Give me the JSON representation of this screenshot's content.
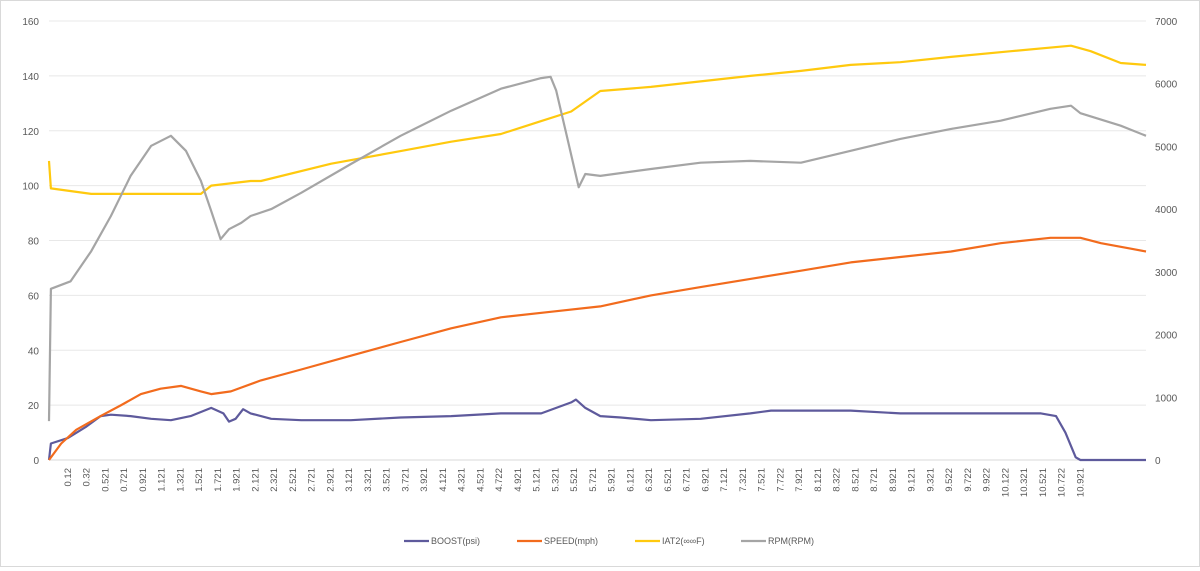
{
  "chart_data": {
    "type": "line",
    "title": "",
    "xlabel": "",
    "ylabel_left": "",
    "ylabel_right": "",
    "xlim": [
      0,
      11.7
    ],
    "ylim_left": [
      0,
      160
    ],
    "ylim_right": [
      0,
      7000
    ],
    "yticks_left": [
      "0",
      "20",
      "40",
      "60",
      "80",
      "100",
      "120",
      "140",
      "160"
    ],
    "yticks_right": [
      "0",
      "1000",
      "2000",
      "3000",
      "4000",
      "5000",
      "6000",
      "7000"
    ],
    "grid": true,
    "legend_position": "bottom",
    "xtick_labels": [
      "0.12",
      "0.32",
      "0.521",
      "0.721",
      "0.921",
      "1.121",
      "1.321",
      "1.521",
      "1.721",
      "1.921",
      "2.121",
      "2.321",
      "2.521",
      "2.721",
      "2.921",
      "3.121",
      "3.321",
      "3.521",
      "3.721",
      "3.921",
      "4.121",
      "4.321",
      "4.521",
      "4.722",
      "4.921",
      "5.121",
      "5.321",
      "5.521",
      "5.721",
      "5.921",
      "6.121",
      "6.321",
      "6.521",
      "6.721",
      "6.921",
      "7.121",
      "7.321",
      "7.521",
      "7.722",
      "7.921",
      "8.121",
      "8.322",
      "8.521",
      "8.721",
      "8.921",
      "9.121",
      "9.321",
      "9.522",
      "9.722",
      "9.922",
      "10.122",
      "10.321",
      "10.521",
      "10.722",
      "10.921"
    ],
    "series": [
      {
        "name": "BOOST(psi)",
        "axis": "left",
        "color": "#5e5a9c",
        "points": [
          [
            0,
            0
          ],
          [
            0.02,
            6
          ],
          [
            0.2,
            8
          ],
          [
            0.39,
            12
          ],
          [
            0.55,
            16
          ],
          [
            0.66,
            16.5
          ],
          [
            0.87,
            16
          ],
          [
            1.09,
            15
          ],
          [
            1.3,
            14.5
          ],
          [
            1.51,
            16
          ],
          [
            1.73,
            19
          ],
          [
            1.86,
            17
          ],
          [
            1.92,
            14
          ],
          [
            1.99,
            15
          ],
          [
            2.07,
            18.5
          ],
          [
            2.15,
            17
          ],
          [
            2.37,
            15
          ],
          [
            2.69,
            14.5
          ],
          [
            3.22,
            14.5
          ],
          [
            3.75,
            15.5
          ],
          [
            4.29,
            16
          ],
          [
            4.82,
            17
          ],
          [
            5.25,
            17
          ],
          [
            5.57,
            21
          ],
          [
            5.62,
            22
          ],
          [
            5.72,
            19
          ],
          [
            5.88,
            16
          ],
          [
            6.1,
            15.5
          ],
          [
            6.42,
            14.5
          ],
          [
            6.95,
            15
          ],
          [
            7.48,
            17
          ],
          [
            7.7,
            18
          ],
          [
            8.55,
            18
          ],
          [
            9.08,
            17
          ],
          [
            9.62,
            17
          ],
          [
            10.15,
            17
          ],
          [
            10.58,
            17
          ],
          [
            10.74,
            16
          ],
          [
            10.84,
            10
          ],
          [
            10.95,
            1
          ],
          [
            11.0,
            0
          ],
          [
            11.7,
            0
          ]
        ]
      },
      {
        "name": "SPEED(mph)",
        "axis": "left",
        "color": "#f26b1d",
        "points": [
          [
            0,
            0
          ],
          [
            0.13,
            6
          ],
          [
            0.29,
            11
          ],
          [
            0.55,
            16
          ],
          [
            0.77,
            20
          ],
          [
            0.98,
            24
          ],
          [
            1.19,
            26
          ],
          [
            1.41,
            27
          ],
          [
            1.62,
            25
          ],
          [
            1.73,
            24
          ],
          [
            1.94,
            25
          ],
          [
            2.26,
            29
          ],
          [
            2.69,
            33
          ],
          [
            3.22,
            38
          ],
          [
            3.75,
            43
          ],
          [
            4.29,
            48
          ],
          [
            4.82,
            52
          ],
          [
            5.35,
            54
          ],
          [
            5.88,
            56
          ],
          [
            6.42,
            60
          ],
          [
            6.95,
            63
          ],
          [
            7.48,
            66
          ],
          [
            8.02,
            69
          ],
          [
            8.55,
            72
          ],
          [
            9.08,
            74
          ],
          [
            9.62,
            76
          ],
          [
            10.15,
            79
          ],
          [
            10.68,
            81
          ],
          [
            11.0,
            81
          ],
          [
            11.22,
            79
          ],
          [
            11.54,
            77
          ],
          [
            11.7,
            76
          ]
        ]
      },
      {
        "name": "IAT2(∞∞F)",
        "axis": "left",
        "color": "#ffc90e",
        "points": [
          [
            0,
            109
          ],
          [
            0.02,
            99
          ],
          [
            0.45,
            97
          ],
          [
            1.62,
            97
          ],
          [
            1.73,
            100
          ],
          [
            2.15,
            101.7
          ],
          [
            2.26,
            101.7
          ],
          [
            3.01,
            108
          ],
          [
            3.75,
            112.6
          ],
          [
            4.29,
            116
          ],
          [
            4.82,
            118.8
          ],
          [
            5.25,
            123.5
          ],
          [
            5.57,
            127
          ],
          [
            5.88,
            134.5
          ],
          [
            6.42,
            136
          ],
          [
            6.95,
            138
          ],
          [
            7.48,
            140
          ],
          [
            8.02,
            141.8
          ],
          [
            8.55,
            144
          ],
          [
            9.08,
            145
          ],
          [
            9.62,
            146.9
          ],
          [
            10.26,
            149
          ],
          [
            10.9,
            151
          ],
          [
            11.11,
            149
          ],
          [
            11.43,
            144.7
          ],
          [
            11.7,
            144
          ]
        ]
      },
      {
        "name": "RPM(RPM)",
        "axis": "right",
        "color": "#a5a5a5",
        "points": [
          [
            0,
            620
          ],
          [
            0.02,
            2730
          ],
          [
            0.23,
            2850
          ],
          [
            0.45,
            3330
          ],
          [
            0.66,
            3890
          ],
          [
            0.87,
            4530
          ],
          [
            1.09,
            5010
          ],
          [
            1.3,
            5170
          ],
          [
            1.46,
            4930
          ],
          [
            1.62,
            4450
          ],
          [
            1.73,
            3970
          ],
          [
            1.83,
            3520
          ],
          [
            1.92,
            3680
          ],
          [
            2.05,
            3780
          ],
          [
            2.15,
            3890
          ],
          [
            2.37,
            4000
          ],
          [
            2.69,
            4260
          ],
          [
            3.22,
            4720
          ],
          [
            3.75,
            5170
          ],
          [
            4.29,
            5570
          ],
          [
            4.82,
            5920
          ],
          [
            5.25,
            6090
          ],
          [
            5.35,
            6110
          ],
          [
            5.41,
            5890
          ],
          [
            5.51,
            5250
          ],
          [
            5.65,
            4350
          ],
          [
            5.72,
            4560
          ],
          [
            5.88,
            4530
          ],
          [
            6.42,
            4640
          ],
          [
            6.95,
            4740
          ],
          [
            7.48,
            4770
          ],
          [
            8.02,
            4740
          ],
          [
            8.55,
            4930
          ],
          [
            9.08,
            5120
          ],
          [
            9.62,
            5280
          ],
          [
            10.15,
            5410
          ],
          [
            10.68,
            5600
          ],
          [
            10.9,
            5650
          ],
          [
            11.0,
            5530
          ],
          [
            11.43,
            5330
          ],
          [
            11.7,
            5170
          ]
        ]
      }
    ]
  }
}
